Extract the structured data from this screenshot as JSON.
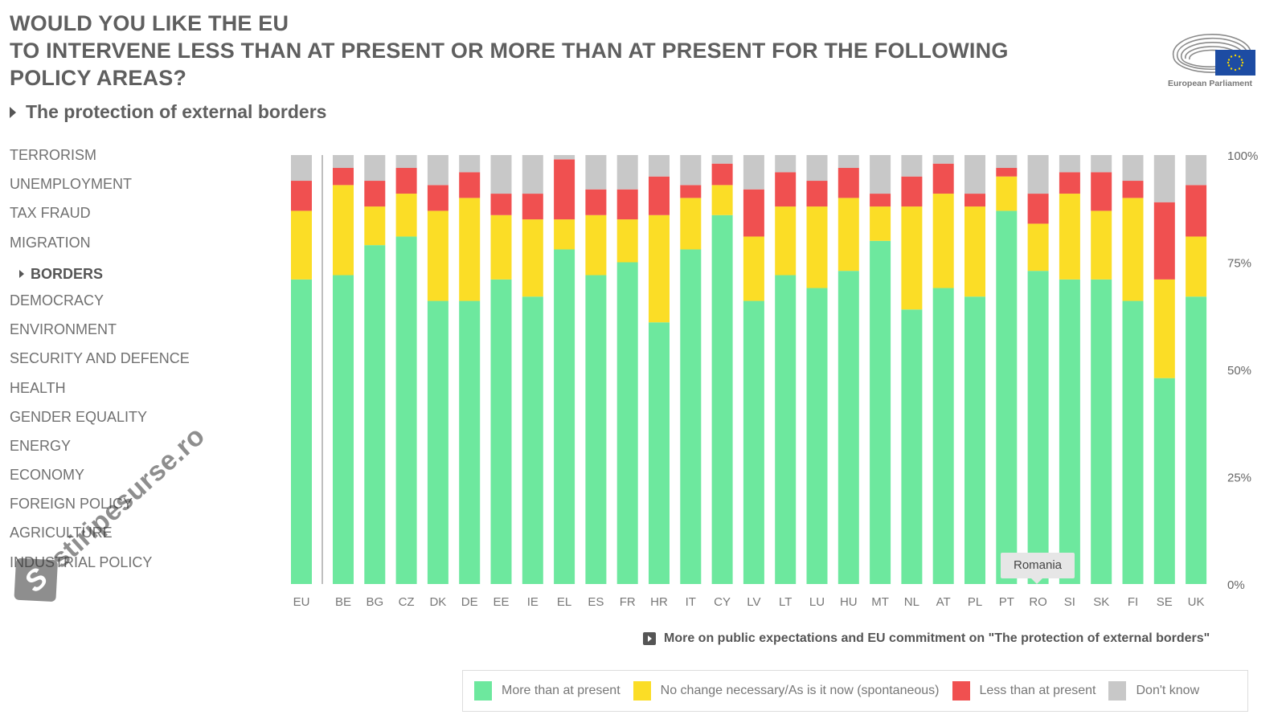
{
  "header": {
    "title_lines": [
      "WOULD YOU LIKE THE EU",
      "TO INTERVENE LESS THAN AT PRESENT OR MORE THAN AT PRESENT FOR THE FOLLOWING",
      "POLICY AREAS?"
    ],
    "subtitle": "The protection of external borders",
    "logo_text": "European Parliament",
    "logo_icon": "european-parliament-logo"
  },
  "sidebar": {
    "items": [
      {
        "label": "TERRORISM",
        "active": false
      },
      {
        "label": "UNEMPLOYMENT",
        "active": false
      },
      {
        "label": "TAX FRAUD",
        "active": false
      },
      {
        "label": "MIGRATION",
        "active": false
      },
      {
        "label": "BORDERS",
        "active": true
      },
      {
        "label": "DEMOCRACY",
        "active": false
      },
      {
        "label": "ENVIRONMENT",
        "active": false
      },
      {
        "label": "SECURITY AND DEFENCE",
        "active": false
      },
      {
        "label": "HEALTH",
        "active": false
      },
      {
        "label": "GENDER EQUALITY",
        "active": false
      },
      {
        "label": "ENERGY",
        "active": false
      },
      {
        "label": "ECONOMY",
        "active": false
      },
      {
        "label": "FOREIGN POLICY",
        "active": false
      },
      {
        "label": "AGRICULTURE",
        "active": false
      },
      {
        "label": "INDUSTRIAL POLICY",
        "active": false
      }
    ]
  },
  "tooltip": {
    "label": "Romania"
  },
  "more_link": {
    "label": "More on public expectations and EU commitment on \"The protection of external borders\""
  },
  "watermark": {
    "badge": "S",
    "text": "stiripesurse.ro"
  },
  "colors": {
    "more": "#6de89e",
    "nochange": "#fbdd26",
    "less": "#f05050",
    "dontknow": "#c8c8c8"
  },
  "chart_data": {
    "type": "bar",
    "stacked": true,
    "title": "The protection of external borders",
    "categories": [
      "EU",
      "BE",
      "BG",
      "CZ",
      "DK",
      "DE",
      "EE",
      "IE",
      "EL",
      "ES",
      "FR",
      "HR",
      "IT",
      "CY",
      "LV",
      "LT",
      "LU",
      "HU",
      "MT",
      "NL",
      "AT",
      "PL",
      "PT",
      "RO",
      "SI",
      "SK",
      "FI",
      "SE",
      "UK"
    ],
    "series": [
      {
        "name": "More than at present",
        "key": "more",
        "values": [
          71,
          72,
          79,
          81,
          66,
          66,
          71,
          67,
          78,
          72,
          75,
          61,
          78,
          86,
          66,
          72,
          69,
          73,
          80,
          64,
          69,
          67,
          87,
          73,
          71,
          71,
          66,
          48,
          67
        ]
      },
      {
        "name": "No change necessary/As is it now (spontaneous)",
        "key": "nochange",
        "values": [
          16,
          21,
          9,
          10,
          21,
          24,
          15,
          18,
          7,
          14,
          10,
          25,
          12,
          7,
          15,
          16,
          19,
          17,
          8,
          24,
          22,
          21,
          8,
          11,
          20,
          16,
          24,
          23,
          14
        ]
      },
      {
        "name": "Less than at present",
        "key": "less",
        "values": [
          7,
          4,
          6,
          6,
          6,
          6,
          5,
          6,
          14,
          6,
          7,
          9,
          3,
          5,
          11,
          8,
          6,
          7,
          3,
          7,
          7,
          3,
          2,
          7,
          5,
          9,
          4,
          18,
          12
        ]
      },
      {
        "name": "Don't know",
        "key": "dontknow",
        "values": [
          6,
          3,
          6,
          3,
          7,
          4,
          9,
          9,
          1,
          8,
          8,
          5,
          7,
          2,
          8,
          4,
          6,
          3,
          9,
          5,
          2,
          9,
          3,
          9,
          4,
          4,
          6,
          11,
          7
        ]
      }
    ],
    "y_ticks": [
      "0%",
      "25%",
      "50%",
      "75%",
      "100%"
    ],
    "ylim": [
      0,
      100
    ],
    "ylabel_position": "right",
    "grid": false,
    "legend": "bottom-right",
    "xlabel": "",
    "ylabel": ""
  }
}
